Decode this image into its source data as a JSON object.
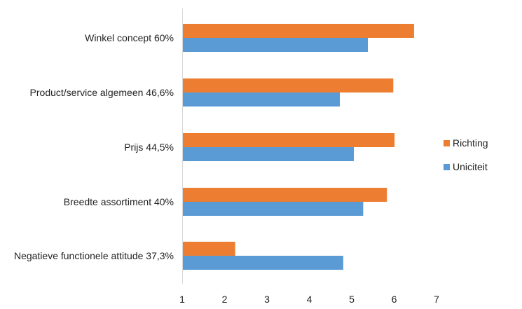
{
  "chart_data": {
    "type": "bar",
    "orientation": "horizontal",
    "title": "",
    "xlabel": "",
    "ylabel": "",
    "categories": [
      "Winkel concept 60%",
      "Product/service algemeen  46,6%",
      "Prijs 44,5%",
      "Breedte assortiment 40%",
      "Negatieve  functionele attitude 37,3%"
    ],
    "series": [
      {
        "name": "Richting",
        "color": "#ED7D31",
        "values": [
          6.47,
          5.98,
          6.01,
          5.83,
          2.25
        ]
      },
      {
        "name": "Uniciteit",
        "color": "#5B9BD5",
        "values": [
          5.38,
          4.72,
          5.05,
          5.27,
          4.8
        ]
      }
    ],
    "xlim": [
      1,
      7
    ],
    "xticks": [
      "1",
      "2",
      "3",
      "4",
      "5",
      "6",
      "7"
    ],
    "grid": false,
    "legend": {
      "position": "right",
      "entries": [
        "Richting",
        "Uniciteit"
      ]
    }
  }
}
